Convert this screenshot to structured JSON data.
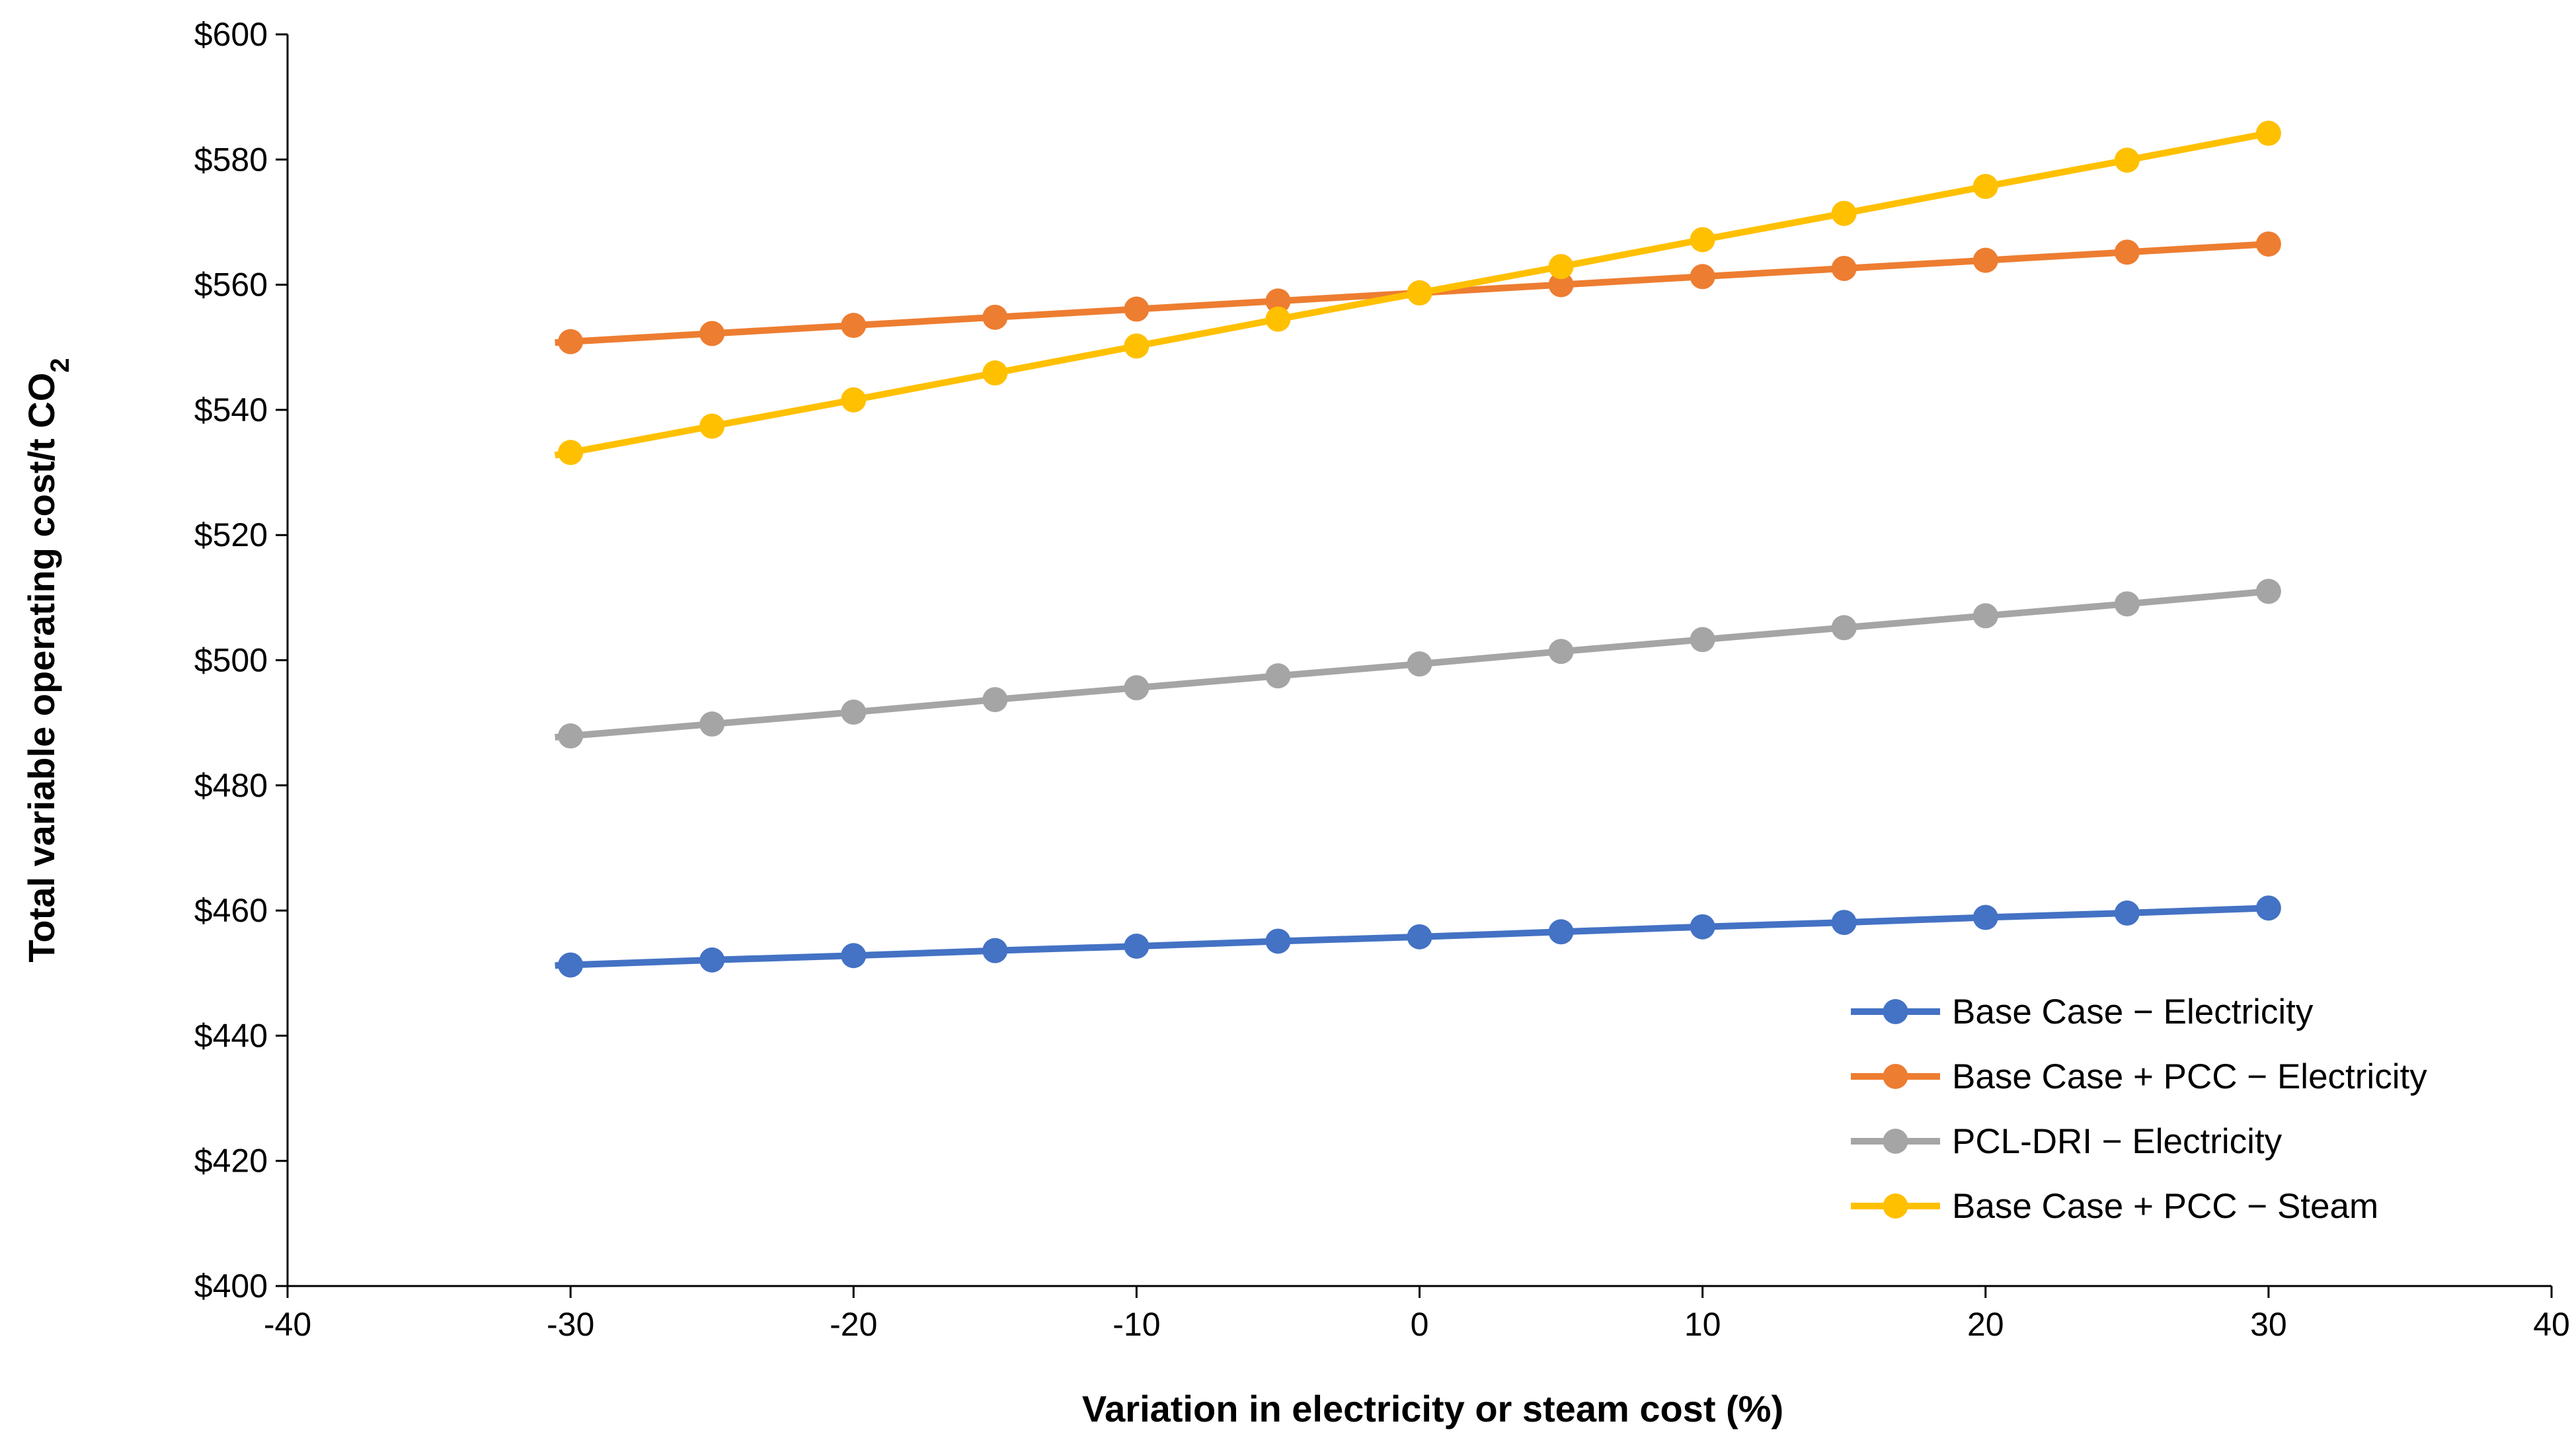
{
  "chart_data": {
    "type": "line",
    "title": "",
    "xlabel": "Variation in electricity or steam cost (%)",
    "ylabel": {
      "main": "Total variable operating cost/t CO",
      "subscript": "2"
    },
    "xlim": [
      -40,
      40
    ],
    "ylim": [
      400,
      600
    ],
    "x_ticks": [
      -40,
      -30,
      -20,
      -10,
      0,
      10,
      20,
      30,
      40
    ],
    "y_ticks": [
      400,
      420,
      440,
      460,
      480,
      500,
      520,
      540,
      560,
      580,
      600
    ],
    "y_tick_labels": [
      "$400",
      "$420",
      "$440",
      "$460",
      "$480",
      "$500",
      "$520",
      "$540",
      "$560",
      "$580",
      "$600"
    ],
    "x_tick_labels": [
      "-40",
      "-30",
      "-20",
      "-10",
      "0",
      "10",
      "20",
      "30",
      "40"
    ],
    "grid": false,
    "legend_position": "bottom-right",
    "x": [
      -30,
      -25,
      -20,
      -15,
      -10,
      -5,
      0,
      5,
      10,
      15,
      20,
      25,
      30
    ],
    "series": [
      {
        "name": "Base Case − Electricity",
        "color": "#4472C4",
        "values": [
          451.3,
          452.1,
          452.8,
          453.6,
          454.3,
          455.1,
          455.8,
          456.6,
          457.4,
          458.1,
          458.9,
          459.6,
          460.4
        ]
      },
      {
        "name": "Base Case + PCC − Electricity",
        "color": "#ED7D31",
        "values": [
          550.9,
          552.2,
          553.5,
          554.8,
          556.1,
          557.4,
          558.7,
          560.0,
          561.3,
          562.6,
          563.9,
          565.2,
          566.5
        ]
      },
      {
        "name": "PCL-DRI − Electricity",
        "color": "#A5A5A5",
        "values": [
          487.9,
          489.8,
          491.7,
          493.7,
          495.6,
          497.5,
          499.4,
          501.4,
          503.3,
          505.2,
          507.1,
          509.0,
          511.0
        ]
      },
      {
        "name": "Base Case + PCC − Steam",
        "color": "#FFC000",
        "values": [
          533.2,
          537.4,
          541.6,
          545.9,
          550.2,
          554.5,
          558.7,
          562.9,
          567.2,
          571.4,
          575.7,
          579.9,
          584.2
        ]
      }
    ]
  }
}
